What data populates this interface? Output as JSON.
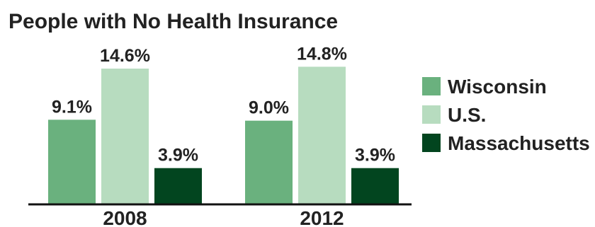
{
  "chart_data": {
    "type": "bar",
    "title": "People with No Health Insurance",
    "categories": [
      "2008",
      "2012"
    ],
    "series": [
      {
        "name": "Wisconsin",
        "values": [
          9.1,
          9.0
        ],
        "labels": [
          "9.1%",
          "9.0%"
        ],
        "color": "#6ab17e"
      },
      {
        "name": "U.S.",
        "values": [
          14.6,
          14.8
        ],
        "labels": [
          "14.6%",
          "14.8%"
        ],
        "color": "#b7dcbf"
      },
      {
        "name": "Massachusetts",
        "values": [
          3.9,
          3.9
        ],
        "labels": [
          "3.9%",
          "3.9%"
        ],
        "color": "#02451f"
      }
    ],
    "ylim": [
      0,
      16
    ],
    "grid": false,
    "legend": "right"
  }
}
